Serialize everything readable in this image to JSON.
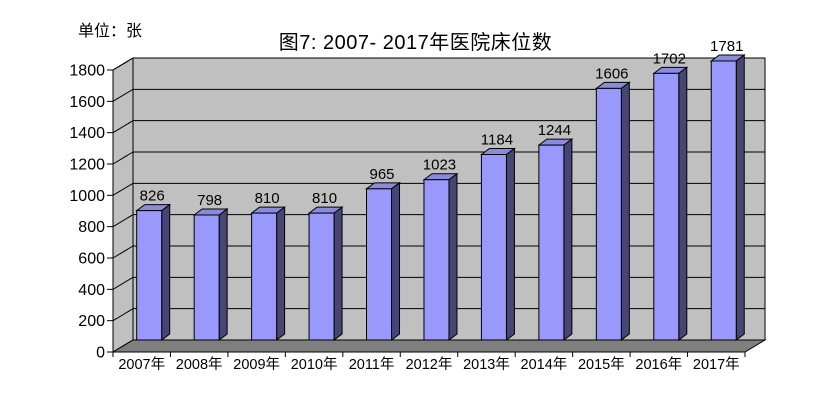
{
  "chart_data": {
    "type": "bar",
    "style": "3d-column",
    "title": "图7: 2007- 2017年医院床位数",
    "unit_label": "单位：张",
    "categories": [
      "2007年",
      "2008年",
      "2009年",
      "2010年",
      "2011年",
      "2012年",
      "2013年",
      "2014年",
      "2015年",
      "2016年",
      "2017年"
    ],
    "values": [
      826,
      798,
      810,
      810,
      965,
      1023,
      1184,
      1244,
      1606,
      1702,
      1781
    ],
    "xlabel": "",
    "ylabel": "单位：张",
    "ylim": [
      0,
      1800
    ],
    "ytick_interval": 200,
    "grid": true,
    "legend": "none",
    "colors": {
      "bar_front": "#9999FB",
      "bar_top": "#8A8ADF",
      "bar_side": "#474573",
      "wall": "#C0C0C0",
      "floor": "#7F7F7F",
      "outline": "#000000",
      "text": "#000000",
      "background": "#FFFFFF"
    }
  }
}
